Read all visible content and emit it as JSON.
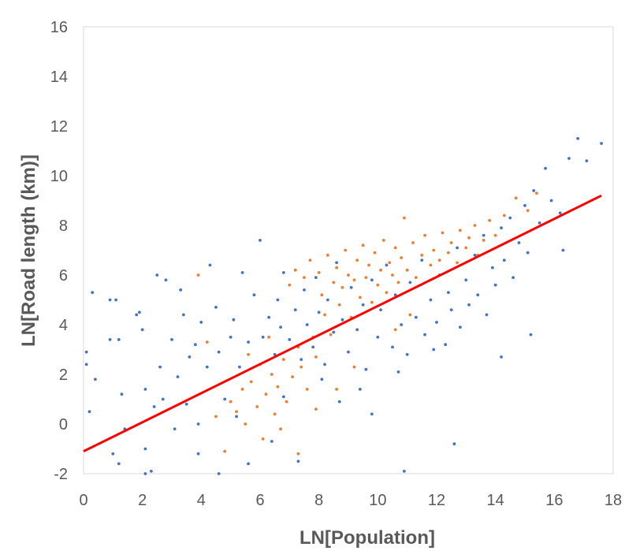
{
  "chart_data": {
    "type": "scatter",
    "title": "",
    "xlabel": "LN[Population]",
    "ylabel": "LN[Road length (km)]",
    "xlim": [
      0,
      18
    ],
    "ylim": [
      -2,
      16
    ],
    "x_ticks": [
      "0",
      "2",
      "4",
      "6",
      "8",
      "10",
      "12",
      "14",
      "16",
      "18"
    ],
    "y_ticks": [
      "-2",
      "0",
      "2",
      "4",
      "6",
      "8",
      "10",
      "12",
      "14",
      "16"
    ],
    "grid": false,
    "legend": "none",
    "colors": {
      "series_a": "#4472C4",
      "series_b": "#ED7D31",
      "fit_line": "#FF0000"
    },
    "series": [
      {
        "color": "#4472C4",
        "points": [
          [
            0.1,
            2.9
          ],
          [
            0.1,
            2.4
          ],
          [
            0.2,
            0.5
          ],
          [
            0.3,
            5.3
          ],
          [
            0.4,
            1.8
          ],
          [
            0.9,
            5.0
          ],
          [
            1.1,
            5.0
          ],
          [
            0.9,
            3.4
          ],
          [
            1.2,
            3.4
          ],
          [
            1.3,
            1.2
          ],
          [
            1.0,
            -1.2
          ],
          [
            1.2,
            -1.6
          ],
          [
            1.4,
            -0.2
          ],
          [
            1.8,
            4.4
          ],
          [
            1.9,
            4.5
          ],
          [
            2.0,
            3.8
          ],
          [
            2.1,
            1.4
          ],
          [
            2.1,
            -1.0
          ],
          [
            2.1,
            -2.0
          ],
          [
            2.3,
            -1.9
          ],
          [
            2.4,
            0.7
          ],
          [
            2.5,
            6.0
          ],
          [
            2.6,
            2.3
          ],
          [
            2.7,
            1.0
          ],
          [
            2.8,
            5.8
          ],
          [
            3.0,
            3.4
          ],
          [
            3.1,
            -0.2
          ],
          [
            3.2,
            1.9
          ],
          [
            3.3,
            5.4
          ],
          [
            3.4,
            4.4
          ],
          [
            3.5,
            0.8
          ],
          [
            3.6,
            2.7
          ],
          [
            3.8,
            3.2
          ],
          [
            3.9,
            0.0
          ],
          [
            4.0,
            4.1
          ],
          [
            4.2,
            2.3
          ],
          [
            4.3,
            6.4
          ],
          [
            4.5,
            4.7
          ],
          [
            4.6,
            2.9
          ],
          [
            4.8,
            1.0
          ],
          [
            5.0,
            3.5
          ],
          [
            5.1,
            4.2
          ],
          [
            5.3,
            2.3
          ],
          [
            5.4,
            6.1
          ],
          [
            5.6,
            3.3
          ],
          [
            5.8,
            5.2
          ],
          [
            6.0,
            7.4
          ],
          [
            6.1,
            3.5
          ],
          [
            6.3,
            4.3
          ],
          [
            6.5,
            2.8
          ],
          [
            6.6,
            5.0
          ],
          [
            6.7,
            3.9
          ],
          [
            6.8,
            6.1
          ],
          [
            7.0,
            3.4
          ],
          [
            7.2,
            4.6
          ],
          [
            7.4,
            2.6
          ],
          [
            7.5,
            5.4
          ],
          [
            7.6,
            4.0
          ],
          [
            7.8,
            3.1
          ],
          [
            7.9,
            5.9
          ],
          [
            8.0,
            4.5
          ],
          [
            8.2,
            2.4
          ],
          [
            8.3,
            5.0
          ],
          [
            8.5,
            3.7
          ],
          [
            8.6,
            6.5
          ],
          [
            8.8,
            4.2
          ],
          [
            9.0,
            2.9
          ],
          [
            9.1,
            5.5
          ],
          [
            9.3,
            3.8
          ],
          [
            9.5,
            4.8
          ],
          [
            9.6,
            2.2
          ],
          [
            9.8,
            5.8
          ],
          [
            10.0,
            3.5
          ],
          [
            10.1,
            4.6
          ],
          [
            10.3,
            6.4
          ],
          [
            10.5,
            3.1
          ],
          [
            10.6,
            5.2
          ],
          [
            10.8,
            4.0
          ],
          [
            11.0,
            2.8
          ],
          [
            11.1,
            5.7
          ],
          [
            11.3,
            4.3
          ],
          [
            11.5,
            6.6
          ],
          [
            11.6,
            3.6
          ],
          [
            11.8,
            5.0
          ],
          [
            12.0,
            4.1
          ],
          [
            12.1,
            6.0
          ],
          [
            12.3,
            3.2
          ],
          [
            12.4,
            5.3
          ],
          [
            12.5,
            4.6
          ],
          [
            12.7,
            7.1
          ],
          [
            12.8,
            3.9
          ],
          [
            13.0,
            5.8
          ],
          [
            13.1,
            4.8
          ],
          [
            13.3,
            6.8
          ],
          [
            13.4,
            5.2
          ],
          [
            13.6,
            7.6
          ],
          [
            13.7,
            4.4
          ],
          [
            13.9,
            6.3
          ],
          [
            14.0,
            5.6
          ],
          [
            14.2,
            7.9
          ],
          [
            14.3,
            6.6
          ],
          [
            14.5,
            8.3
          ],
          [
            14.6,
            5.9
          ],
          [
            14.8,
            7.3
          ],
          [
            15.0,
            8.8
          ],
          [
            15.1,
            6.9
          ],
          [
            15.3,
            9.4
          ],
          [
            15.5,
            8.1
          ],
          [
            15.7,
            10.3
          ],
          [
            15.9,
            9.0
          ],
          [
            16.2,
            8.5
          ],
          [
            16.5,
            10.7
          ],
          [
            16.8,
            11.5
          ],
          [
            17.1,
            10.6
          ],
          [
            17.6,
            11.3
          ],
          [
            16.3,
            7.0
          ],
          [
            15.2,
            3.6
          ],
          [
            14.2,
            2.7
          ],
          [
            12.6,
            -0.8
          ],
          [
            10.9,
            -1.9
          ],
          [
            9.8,
            0.4
          ],
          [
            8.7,
            0.9
          ],
          [
            7.3,
            -1.5
          ],
          [
            6.4,
            -0.7
          ],
          [
            5.6,
            -1.6
          ],
          [
            4.6,
            -2.0
          ],
          [
            3.9,
            -1.2
          ],
          [
            5.2,
            0.3
          ],
          [
            6.8,
            1.1
          ],
          [
            8.1,
            1.8
          ],
          [
            9.4,
            1.4
          ],
          [
            10.7,
            2.1
          ],
          [
            11.9,
            3.0
          ]
        ]
      },
      {
        "color": "#ED7D31",
        "points": [
          [
            3.9,
            6.0
          ],
          [
            4.2,
            3.3
          ],
          [
            4.5,
            0.3
          ],
          [
            4.8,
            -1.1
          ],
          [
            5.0,
            0.9
          ],
          [
            5.2,
            0.5
          ],
          [
            5.4,
            1.4
          ],
          [
            5.5,
            0.0
          ],
          [
            5.7,
            1.7
          ],
          [
            5.9,
            0.7
          ],
          [
            6.0,
            2.4
          ],
          [
            6.1,
            -0.6
          ],
          [
            6.2,
            1.2
          ],
          [
            6.4,
            2.0
          ],
          [
            6.5,
            0.4
          ],
          [
            6.6,
            1.5
          ],
          [
            6.8,
            2.6
          ],
          [
            6.9,
            0.9
          ],
          [
            7.0,
            5.6
          ],
          [
            7.1,
            1.9
          ],
          [
            7.2,
            6.2
          ],
          [
            7.3,
            3.1
          ],
          [
            7.4,
            2.3
          ],
          [
            7.5,
            5.9
          ],
          [
            7.6,
            1.4
          ],
          [
            7.7,
            6.6
          ],
          [
            7.8,
            3.5
          ],
          [
            7.9,
            2.7
          ],
          [
            8.0,
            6.1
          ],
          [
            8.1,
            5.2
          ],
          [
            8.2,
            4.4
          ],
          [
            8.3,
            6.8
          ],
          [
            8.4,
            3.6
          ],
          [
            8.5,
            5.7
          ],
          [
            8.6,
            6.3
          ],
          [
            8.7,
            4.8
          ],
          [
            8.8,
            5.5
          ],
          [
            8.9,
            7.0
          ],
          [
            9.0,
            6.0
          ],
          [
            9.1,
            4.3
          ],
          [
            9.2,
            5.8
          ],
          [
            9.3,
            6.6
          ],
          [
            9.4,
            5.1
          ],
          [
            9.5,
            7.2
          ],
          [
            9.6,
            5.9
          ],
          [
            9.7,
            6.4
          ],
          [
            9.8,
            4.9
          ],
          [
            9.9,
            6.9
          ],
          [
            10.0,
            5.6
          ],
          [
            10.1,
            6.2
          ],
          [
            10.2,
            7.4
          ],
          [
            10.3,
            5.3
          ],
          [
            10.4,
            6.5
          ],
          [
            10.5,
            6.0
          ],
          [
            10.6,
            7.1
          ],
          [
            10.7,
            5.7
          ],
          [
            10.8,
            6.7
          ],
          [
            10.9,
            8.3
          ],
          [
            11.0,
            6.2
          ],
          [
            11.2,
            7.3
          ],
          [
            11.3,
            5.9
          ],
          [
            11.5,
            6.8
          ],
          [
            11.6,
            7.6
          ],
          [
            11.8,
            6.4
          ],
          [
            11.9,
            7.0
          ],
          [
            12.1,
            6.6
          ],
          [
            12.2,
            7.7
          ],
          [
            12.4,
            6.9
          ],
          [
            12.5,
            7.3
          ],
          [
            12.7,
            6.5
          ],
          [
            12.8,
            7.8
          ],
          [
            13.0,
            7.1
          ],
          [
            13.1,
            7.5
          ],
          [
            13.3,
            8.0
          ],
          [
            13.4,
            6.8
          ],
          [
            13.6,
            7.4
          ],
          [
            13.8,
            8.2
          ],
          [
            14.0,
            7.6
          ],
          [
            14.3,
            8.4
          ],
          [
            14.7,
            9.1
          ],
          [
            15.1,
            8.6
          ],
          [
            15.4,
            9.3
          ],
          [
            9.2,
            2.3
          ],
          [
            8.6,
            1.4
          ],
          [
            7.9,
            0.6
          ],
          [
            7.3,
            -1.2
          ],
          [
            6.7,
            -0.2
          ],
          [
            10.6,
            3.8
          ],
          [
            11.1,
            4.4
          ],
          [
            6.3,
            3.5
          ],
          [
            5.6,
            2.8
          ]
        ]
      }
    ],
    "fit_line": {
      "x": [
        0,
        17.6
      ],
      "y": [
        -1.1,
        9.2
      ],
      "color": "#FF0000"
    }
  }
}
